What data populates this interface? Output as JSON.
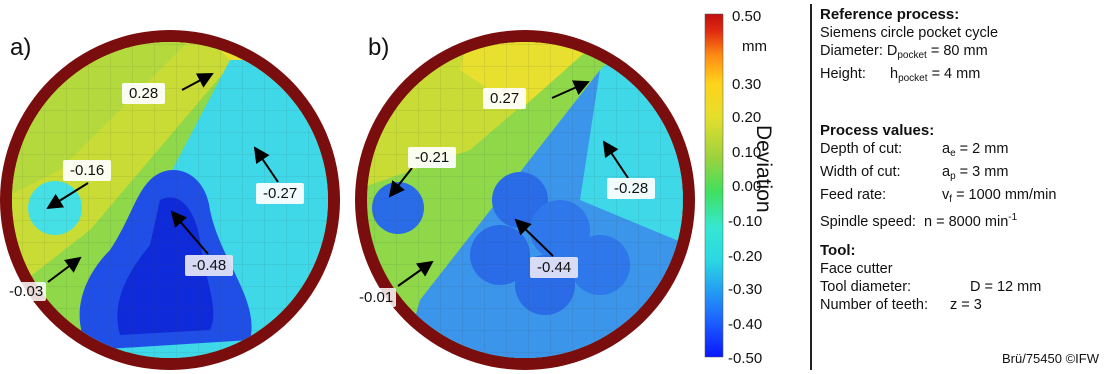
{
  "plots": [
    {
      "label": "a)",
      "annotations": [
        "0.28",
        "-0.16",
        "-0.27",
        "-0.48",
        "-0.03"
      ]
    },
    {
      "label": "b)",
      "annotations": [
        "0.27",
        "-0.21",
        "-0.28",
        "-0.44",
        "-0.01"
      ]
    }
  ],
  "colorbar": {
    "ticks": [
      "0.50",
      "mm",
      "0.30",
      "0.20",
      "0.10",
      "0.00",
      "-0.10",
      "-0.20",
      "-0.30",
      "-0.40",
      "-0.50"
    ],
    "title": "Deviation",
    "range": [
      -0.5,
      0.5
    ],
    "colors": [
      "#0a16ff",
      "#1f6cff",
      "#2ad7e3",
      "#35e8d1",
      "#3fe05f",
      "#9bd23d",
      "#e5df2c",
      "#ffd21a",
      "#ff8a14",
      "#e02a10",
      "#c01010"
    ]
  },
  "legend": {
    "reference": {
      "heading": "Reference process:",
      "line1": "Siemens circle pocket cycle",
      "diameter_label": "Diameter: D",
      "diameter_sub": "pocket",
      "diameter_value": "= 80 mm",
      "height_label": "Height:",
      "height_sym": "h",
      "height_sub": "pocket",
      "height_value": "= 4 mm"
    },
    "process": {
      "heading": "Process values:",
      "depth_label": "Depth of cut:",
      "depth_sym": "a",
      "depth_sub": "e",
      "depth_value": "= 2 mm",
      "width_label": "Width of cut:",
      "width_sym": "a",
      "width_sub": "p",
      "width_value": "= 3 mm",
      "feed_label": "Feed rate:",
      "feed_sym": "v",
      "feed_sub": "f",
      "feed_value": "= 1000 mm/min",
      "spindle_label": "Spindle speed:",
      "spindle_sym": "n",
      "spindle_value": "= 8000 min",
      "spindle_sup": "-1"
    },
    "tool": {
      "heading": "Tool:",
      "line1": "Face cutter",
      "diameter_label": "Tool diameter:",
      "diameter_value": "D = 12 mm",
      "teeth_label": "Number of teeth:",
      "teeth_value": "z = 3"
    }
  },
  "credit": "Brü/75450 ©IFW"
}
